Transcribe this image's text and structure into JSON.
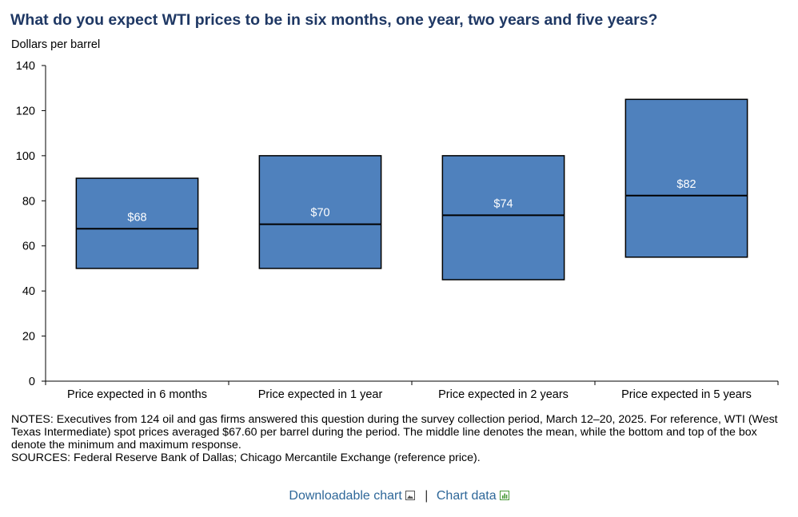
{
  "title": "What do you expect WTI prices to be in six months, one year, two years and five years?",
  "chart_data": {
    "type": "box",
    "title": "What do you expect WTI prices to be in six months, one year, two years and five years?",
    "ylabel": "Dollars  per barrel",
    "ylim": [
      0,
      140
    ],
    "yticks": [
      0,
      20,
      40,
      60,
      80,
      100,
      120,
      140
    ],
    "categories": [
      "Price expected in 6 months",
      "Price expected in 1 year",
      "Price expected in 2 years",
      "Price expected in 5 years"
    ],
    "min": [
      50,
      50,
      45,
      55
    ],
    "max": [
      90,
      100,
      100,
      125
    ],
    "mean": [
      67.6,
      69.6,
      73.6,
      82.3
    ],
    "mean_labels": [
      "$68",
      "$70",
      "$74",
      "$82"
    ],
    "box_color": "#4f81bd",
    "grid": false
  },
  "notes": {
    "notes_text": "NOTES:  Executives  from 124 oil and gas firms answered this question during the survey collection period, March 12–20, 2025. For reference, WTI (West Texas  Intermediate) spot prices averaged  $67.60 per barrel during the period. The middle line denotes the mean, while the bottom  and top of the box denote the minimum  and maximum  response.",
    "sources_text": "SOURCES:  Federal Reserve Bank of Dallas; Chicago Mercantile Exchange (reference price)."
  },
  "links": {
    "downloadable": "Downloadable chart",
    "separator": "|",
    "chart_data": "Chart data"
  },
  "colors": {
    "title": "#1f3864",
    "link": "#2e6799",
    "box": "#4f81bd",
    "data_icon": "#4a9a3a"
  },
  "icons": {
    "downloadable": "image-icon",
    "chart_data": "spreadsheet-icon"
  }
}
